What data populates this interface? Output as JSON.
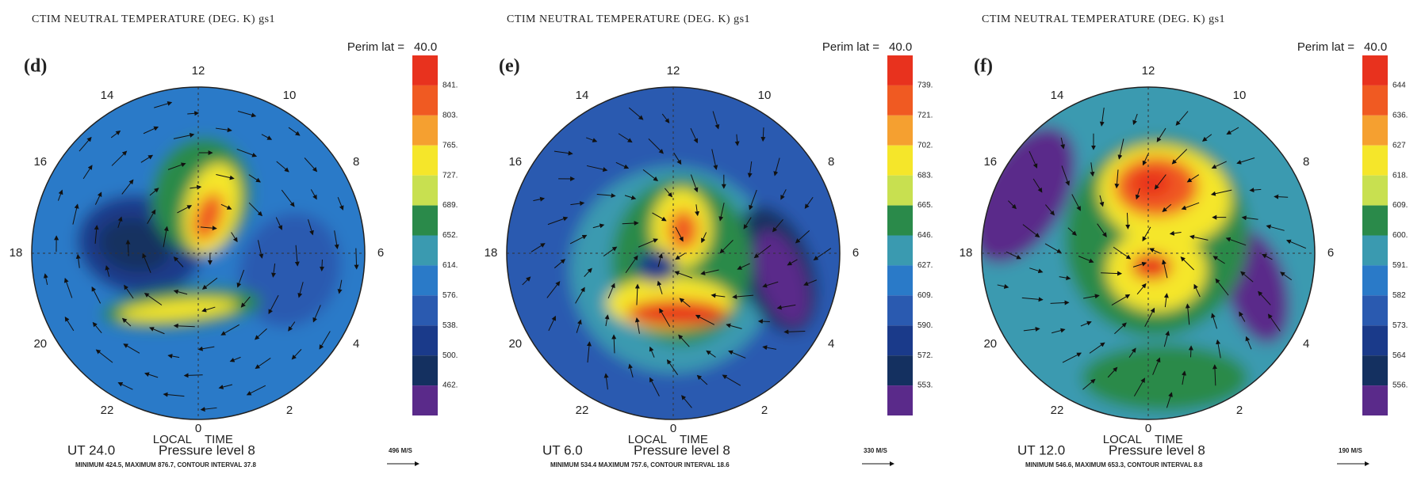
{
  "panels": [
    {
      "title": "CTIM NEUTRAL TEMPERATURE (DEG. K) gs1",
      "label": "(d)",
      "perim_label": "Perim lat =",
      "perim_value": "40.0",
      "hours": [
        "12",
        "10",
        "8",
        "6",
        "4",
        "2",
        "0",
        "22",
        "20",
        "18",
        "16",
        "14"
      ],
      "local_label": "LOCAL",
      "time_label": "TIME",
      "colorbar_labels": [
        "841.",
        "803.",
        "765.",
        "727.",
        "689.",
        "652.",
        "614.",
        "576.",
        "538.",
        "500.",
        "462."
      ],
      "ut": "UT  24.0",
      "pressure": "Pressure level  8",
      "stats": "MINIMUM 424.5, MAXIMUM 876.7, CONTOUR INTERVAL 37.8",
      "speed": "496 M/S"
    },
    {
      "title": "CTIM NEUTRAL TEMPERATURE (DEG. K) gs1",
      "label": "(e)",
      "perim_label": "Perim lat =",
      "perim_value": "40.0",
      "hours": [
        "12",
        "10",
        "8",
        "6",
        "4",
        "2",
        "0",
        "22",
        "20",
        "18",
        "16",
        "14"
      ],
      "local_label": "LOCAL",
      "time_label": "TIME",
      "colorbar_labels": [
        "739.",
        "721.",
        "702.",
        "683.",
        "665.",
        "646.",
        "627.",
        "609.",
        "590.",
        "572.",
        "553."
      ],
      "ut": "UT    6.0",
      "pressure": "Pressure level  8",
      "stats": "MINIMUM 534.4  MAXIMUM 757.6, CONTOUR INTERVAL 18.6",
      "speed": "330 M/S"
    },
    {
      "title": "CTIM NEUTRAL TEMPERATURE (DEG. K) gs1",
      "label": "(f)",
      "perim_label": "Perim lat =",
      "perim_value": "40.0",
      "hours": [
        "12",
        "10",
        "8",
        "6",
        "4",
        "2",
        "0",
        "22",
        "20",
        "18",
        "16",
        "14"
      ],
      "local_label": "LOCAL",
      "time_label": "TIME",
      "colorbar_labels": [
        "644",
        "636.",
        "627",
        "618.",
        "609.",
        "600.",
        "591.",
        "582",
        "573.",
        "564",
        "556."
      ],
      "ut": "UT   12.0",
      "pressure": "Pressure level  8",
      "stats": "MINIMUM 546.6, MAXIMUM 653.3, CONTOUR INTERVAL 8.8",
      "speed": "190 M/S"
    }
  ],
  "colorbar_colors": [
    "#e8321e",
    "#f05a22",
    "#f5a030",
    "#f5e62a",
    "#c8e050",
    "#2a8a4a",
    "#3a9ab0",
    "#2a7ac8",
    "#2a5ab0",
    "#1a3a8a",
    "#143060",
    "#5a2a8a"
  ]
}
